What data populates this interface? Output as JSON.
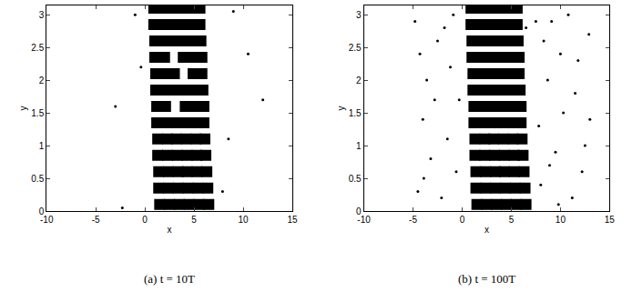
{
  "chart_data": [
    {
      "type": "scatter",
      "title": "(a) t = 10T",
      "x_label": "x",
      "y_label": "y",
      "xlim": [
        -10,
        15
      ],
      "xticks": [
        -10,
        -5,
        0,
        5,
        10,
        15
      ],
      "ylim": [
        0,
        3.1416
      ],
      "yticks": [
        0,
        0.5,
        1,
        1.5,
        2,
        2.5,
        3
      ],
      "series": [
        {
          "color": "#000000",
          "marker": "square",
          "x": [
            1.5,
            2.5,
            3.5,
            4.5,
            5.5,
            6.5,
            1.4,
            2.4,
            3.4,
            4.4,
            5.4,
            6.4,
            1.4,
            2.4,
            3.4,
            4.3,
            5.3,
            6.3,
            1.3,
            2.3,
            3.3,
            4.3,
            5.3,
            6.2,
            1.3,
            2.3,
            3.2,
            4.2,
            5.2,
            6.1,
            1.2,
            2.2,
            3.2,
            4.1,
            5.1,
            6.0,
            1.2,
            2.1,
            4.1,
            5.0,
            6.0,
            1.1,
            2.1,
            3.0,
            4.0,
            5.0,
            5.9,
            1.1,
            2.0,
            3.0,
            4.9,
            5.8,
            1.0,
            2.0,
            3.9,
            4.8,
            5.8,
            1.0,
            1.9,
            2.9,
            3.8,
            4.8,
            5.7,
            0.9,
            1.9,
            2.8,
            3.8,
            4.7,
            5.6,
            0.9,
            1.8,
            2.8,
            3.7,
            4.7,
            5.6
          ],
          "y": [
            0.1,
            0.1,
            0.1,
            0.1,
            0.1,
            0.1,
            0.35,
            0.35,
            0.35,
            0.35,
            0.35,
            0.35,
            0.6,
            0.6,
            0.6,
            0.6,
            0.6,
            0.6,
            0.85,
            0.85,
            0.85,
            0.85,
            0.85,
            0.85,
            1.1,
            1.1,
            1.1,
            1.1,
            1.1,
            1.1,
            1.35,
            1.35,
            1.35,
            1.35,
            1.35,
            1.35,
            1.6,
            1.6,
            1.6,
            1.6,
            1.6,
            1.85,
            1.85,
            1.85,
            1.85,
            1.85,
            1.85,
            2.1,
            2.1,
            2.1,
            2.1,
            2.1,
            2.35,
            2.35,
            2.35,
            2.35,
            2.35,
            2.6,
            2.6,
            2.6,
            2.6,
            2.6,
            2.6,
            2.85,
            2.85,
            2.85,
            2.85,
            2.85,
            2.85,
            3.1,
            3.1,
            3.1,
            3.1,
            3.1,
            3.1
          ]
        },
        {
          "color": "#000000",
          "marker": "dot",
          "x": [
            -2.3,
            10.5,
            8.5,
            -1.0,
            9.0,
            12.0,
            -3.0,
            7.9,
            -0.4
          ],
          "y": [
            0.05,
            2.4,
            1.1,
            3.0,
            3.05,
            1.7,
            1.6,
            0.3,
            2.2
          ]
        }
      ]
    },
    {
      "type": "scatter",
      "title": "(b) t = 100T",
      "x_label": "x",
      "y_label": "y",
      "xlim": [
        -10,
        15
      ],
      "xticks": [
        -10,
        -5,
        0,
        5,
        10,
        15
      ],
      "ylim": [
        0,
        3.1416
      ],
      "yticks": [
        0,
        0.5,
        1,
        1.5,
        2,
        2.5,
        3
      ],
      "series": [
        {
          "color": "#000000",
          "marker": "square",
          "x": [
            1.5,
            2.5,
            3.5,
            4.5,
            5.5,
            6.5,
            1.4,
            2.4,
            3.4,
            4.4,
            5.4,
            6.4,
            1.4,
            2.4,
            3.4,
            4.3,
            5.3,
            6.3,
            1.3,
            2.3,
            3.3,
            4.3,
            5.3,
            6.2,
            1.3,
            2.3,
            3.2,
            4.2,
            5.2,
            6.1,
            1.2,
            2.2,
            3.2,
            4.1,
            5.1,
            6.0,
            1.2,
            2.1,
            3.1,
            4.1,
            5.0,
            6.0,
            1.1,
            2.1,
            3.0,
            4.0,
            5.0,
            5.9,
            1.1,
            2.0,
            3.0,
            3.9,
            4.9,
            5.8,
            1.0,
            2.0,
            2.9,
            3.9,
            4.8,
            5.8,
            1.0,
            1.9,
            2.9,
            3.8,
            4.8,
            5.7,
            0.9,
            1.9,
            2.8,
            3.8,
            4.7,
            5.6,
            0.9,
            1.8,
            2.8,
            3.7,
            4.7,
            5.6
          ],
          "y": [
            0.1,
            0.1,
            0.1,
            0.1,
            0.1,
            0.1,
            0.35,
            0.35,
            0.35,
            0.35,
            0.35,
            0.35,
            0.6,
            0.6,
            0.6,
            0.6,
            0.6,
            0.6,
            0.85,
            0.85,
            0.85,
            0.85,
            0.85,
            0.85,
            1.1,
            1.1,
            1.1,
            1.1,
            1.1,
            1.1,
            1.35,
            1.35,
            1.35,
            1.35,
            1.35,
            1.35,
            1.6,
            1.6,
            1.6,
            1.6,
            1.6,
            1.6,
            1.85,
            1.85,
            1.85,
            1.85,
            1.85,
            1.85,
            2.1,
            2.1,
            2.1,
            2.1,
            2.1,
            2.1,
            2.35,
            2.35,
            2.35,
            2.35,
            2.35,
            2.35,
            2.6,
            2.6,
            2.6,
            2.6,
            2.6,
            2.6,
            2.85,
            2.85,
            2.85,
            2.85,
            2.85,
            2.85,
            3.1,
            3.1,
            3.1,
            3.1,
            3.1,
            3.1
          ]
        },
        {
          "color": "#000000",
          "marker": "dot",
          "x": [
            -4.5,
            -3.2,
            -2.1,
            -4.0,
            -1.5,
            -3.6,
            -2.5,
            -4.8,
            -1.2,
            -0.6,
            -2.8,
            -0.9,
            -3.9,
            -1.8,
            -4.3,
            8.0,
            9.5,
            11.2,
            12.5,
            10.3,
            8.7,
            11.8,
            9.1,
            12.9,
            7.8,
            10.8,
            8.3,
            12.2,
            9.8,
            11.5,
            13.0,
            7.5,
            10.0,
            8.9,
            6.5,
            -0.3
          ],
          "y": [
            0.3,
            0.8,
            0.2,
            1.4,
            1.1,
            2.0,
            2.6,
            2.9,
            2.2,
            0.6,
            1.7,
            3.0,
            0.5,
            2.8,
            2.4,
            0.4,
            0.9,
            0.2,
            1.0,
            1.5,
            2.0,
            2.3,
            2.9,
            2.7,
            1.3,
            3.0,
            2.6,
            0.6,
            0.1,
            1.8,
            1.4,
            2.9,
            2.4,
            0.7,
            2.8,
            1.7
          ]
        }
      ]
    }
  ]
}
